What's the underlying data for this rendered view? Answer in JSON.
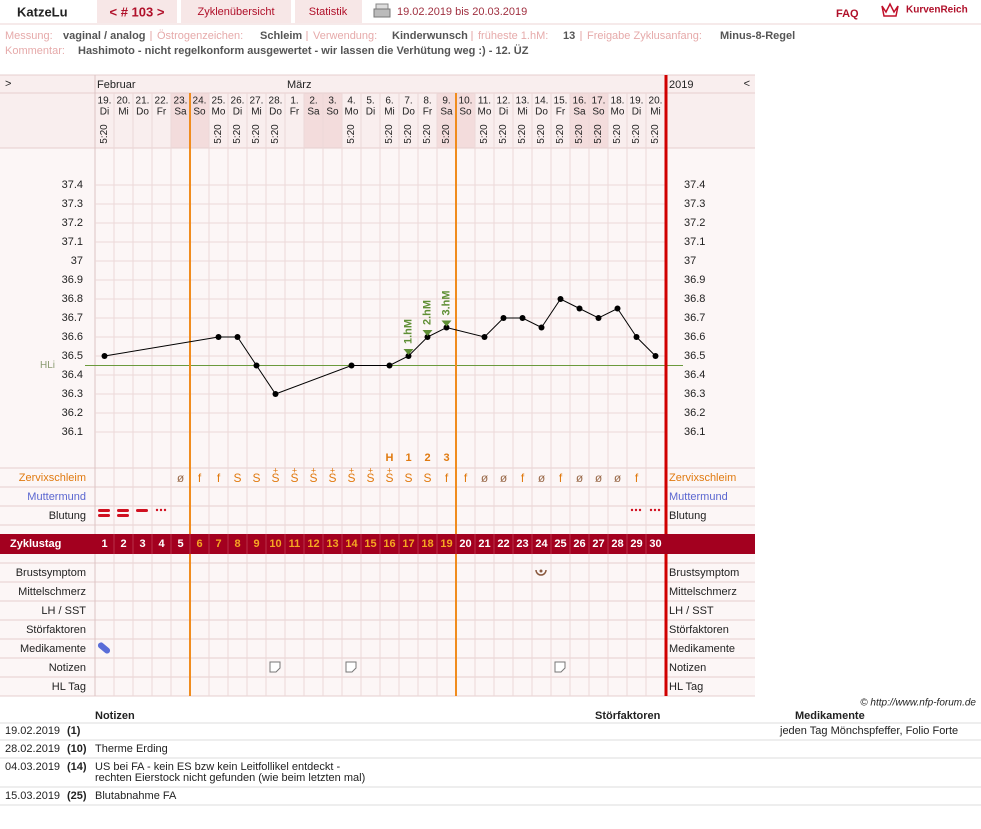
{
  "header": {
    "user": "KatzeLu",
    "cycle_nav": "< # 103 >",
    "tabs": [
      "Zyklenübersicht",
      "Statistik"
    ],
    "date_range": "19.02.2019 bis 20.03.2019",
    "faq": "FAQ",
    "logo": "KurvenReich"
  },
  "info": {
    "fields": [
      {
        "label": "Messung:",
        "value": "vaginal / analog"
      },
      {
        "label": "Östrogenzeichen:",
        "value": "Schleim"
      },
      {
        "label": "Verwendung:",
        "value": "Kinderwunsch"
      },
      {
        "label": "früheste 1.hM:",
        "value": "13"
      },
      {
        "label": "Freigabe Zyklusanfang:",
        "value": "Minus-8-Regel"
      }
    ],
    "comment_label": "Kommentar:",
    "comment": "Hashimoto - nicht regelkonform ausgewertet  - wir lassen die Verhütung weg :) - 12. ÜZ"
  },
  "chart_data": {
    "type": "line",
    "nav_prev": ">",
    "nav_next": "<",
    "year": "2019",
    "months": [
      {
        "label": "Februar",
        "day": 1
      },
      {
        "label": "März",
        "day": 11
      }
    ],
    "dates": [
      "19.",
      "20.",
      "21.",
      "22.",
      "23.",
      "24.",
      "25.",
      "26.",
      "27.",
      "28.",
      "1.",
      "2.",
      "3.",
      "4.",
      "5.",
      "6.",
      "7.",
      "8.",
      "9.",
      "10.",
      "11.",
      "12.",
      "13.",
      "14.",
      "15.",
      "16.",
      "17.",
      "18.",
      "19.",
      "20."
    ],
    "weekdays": [
      "Di",
      "Mi",
      "Do",
      "Fr",
      "Sa",
      "So",
      "Mo",
      "Di",
      "Mi",
      "Do",
      "Fr",
      "Sa",
      "So",
      "Mo",
      "Di",
      "Mi",
      "Do",
      "Fr",
      "Sa",
      "So",
      "Mo",
      "Di",
      "Mi",
      "Do",
      "Fr",
      "Sa",
      "So",
      "Mo",
      "Di",
      "Mi"
    ],
    "times": [
      "5:20",
      null,
      null,
      null,
      null,
      null,
      "5:20",
      "5:20",
      "5:20",
      "5:20",
      null,
      null,
      null,
      "5:20",
      null,
      "5:20",
      "5:20",
      "5:20",
      "5:20",
      null,
      "5:20",
      "5:20",
      "5:20",
      "5:20",
      "5:20",
      "5:20",
      "5:20",
      "5:20",
      "5:20",
      "5:20"
    ],
    "x": [
      1,
      7,
      8,
      9,
      10,
      14,
      16,
      17,
      18,
      19,
      21,
      22,
      23,
      24,
      25,
      26,
      27,
      28,
      29,
      30
    ],
    "values": [
      36.5,
      36.6,
      36.6,
      36.45,
      36.3,
      36.45,
      36.45,
      36.5,
      36.6,
      36.65,
      36.6,
      36.7,
      36.7,
      36.65,
      36.8,
      36.75,
      36.7,
      36.75,
      36.6,
      36.5
    ],
    "color": "#000000",
    "ylim": [
      36.1,
      37.4
    ],
    "yticks": [
      37.4,
      37.3,
      37.2,
      37.1,
      37,
      36.9,
      36.8,
      36.7,
      36.6,
      36.5,
      36.4,
      36.3,
      36.2,
      36.1
    ],
    "grid": true,
    "hli": {
      "label": "HLi",
      "value": 36.45,
      "color": "#6b9a3c"
    },
    "peaks": [
      {
        "label": "1.hM",
        "day": 17
      },
      {
        "label": "2.hM",
        "day": 18
      },
      {
        "label": "3.hM",
        "day": 19
      }
    ],
    "peak_color": "#5f8f35",
    "fertility_marks": {
      "days": [
        16,
        17,
        18,
        19
      ],
      "labels": [
        "H",
        "1",
        "2",
        "3"
      ]
    },
    "fertile_days": [
      6,
      19
    ],
    "zervix": {
      "label": "Zervixschleim",
      "symbols": [
        null,
        null,
        null,
        null,
        "ø",
        "f",
        "f",
        "S",
        "S",
        "S",
        "S",
        "S",
        "S",
        "S",
        "S",
        "S",
        "S",
        "S",
        "f",
        "f",
        "ø",
        "ø",
        "f",
        "ø",
        "f",
        "ø",
        "ø",
        "ø",
        "f",
        null
      ],
      "plus": [
        null,
        null,
        null,
        null,
        null,
        null,
        null,
        null,
        null,
        "+",
        "+",
        "+",
        "+",
        "+",
        "+",
        "+",
        null,
        null,
        null,
        null,
        null,
        null,
        null,
        null,
        null,
        null,
        null,
        null,
        null,
        null
      ]
    },
    "upper_rows": [
      "Muttermund",
      "Blutung"
    ],
    "cycle_days": {
      "label": "Zyklustag",
      "values": [
        1,
        2,
        3,
        4,
        5,
        6,
        7,
        8,
        9,
        10,
        11,
        12,
        13,
        14,
        15,
        16,
        17,
        18,
        19,
        20,
        21,
        22,
        23,
        24,
        25,
        26,
        27,
        28,
        29,
        30
      ]
    },
    "lower_rows": [
      "Brustsymptom",
      "Mittelschmerz",
      "LH / SST",
      "Störfaktoren",
      "Medikamente",
      "Notizen",
      "HL Tag"
    ]
  },
  "copyright": "© http://www.nfp-forum.de",
  "notes_table": {
    "headers": [
      "Notizen",
      "Störfaktoren",
      "Medikamente"
    ],
    "rows": [
      {
        "date": "19.02.2019",
        "day": "(1)",
        "notes": [],
        "medication": "jeden Tag Mönchspfeffer,  Folio Forte"
      },
      {
        "date": "28.02.2019",
        "day": "(10)",
        "notes": [
          "Therme Erding"
        ]
      },
      {
        "date": "04.03.2019",
        "day": "(14)",
        "notes": [
          "US bei FA - kein ES bzw kein Leitfollikel entdeckt -",
          "rechten Eierstock nicht gefunden (wie beim letzten mal)"
        ]
      },
      {
        "date": "15.03.2019",
        "day": "(25)",
        "notes": [
          "Blutabnahme FA"
        ]
      }
    ]
  }
}
